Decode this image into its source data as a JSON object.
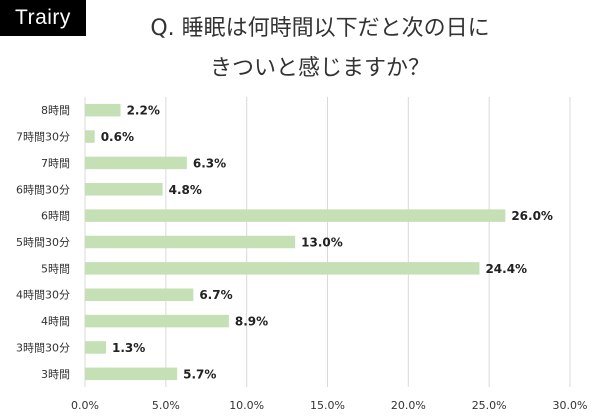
{
  "brand": {
    "logo_text": "Trairy"
  },
  "header": {
    "title_line1": "Q. 睡眠は何時間以下だと次の日に",
    "title_line2": "きついと感じますか？"
  },
  "chart_data": {
    "type": "bar",
    "orientation": "horizontal",
    "title": "Q. 睡眠は何時間以下だと次の日にきついと感じますか？",
    "categories": [
      "8時間",
      "7時間30分",
      "7時間",
      "6時間30分",
      "6時間",
      "5時間30分",
      "5時間",
      "4時間30分",
      "4時間",
      "3時間30分",
      "3時間"
    ],
    "values": [
      2.2,
      0.6,
      6.3,
      4.8,
      26.0,
      13.0,
      24.4,
      6.7,
      8.9,
      1.3,
      5.7
    ],
    "value_labels": [
      "2.2%",
      "0.6%",
      "6.3%",
      "4.8%",
      "26.0%",
      "13.0%",
      "24.4%",
      "6.7%",
      "8.9%",
      "1.3%",
      "5.7%"
    ],
    "x_ticks": [
      "0.0%",
      "5.0%",
      "10.0%",
      "15.0%",
      "20.0%",
      "25.0%",
      "30.0%"
    ],
    "xlim": [
      0,
      30
    ],
    "xlabel": "",
    "ylabel": "",
    "grid": "vertical",
    "legend": "none",
    "bar_color": "#c5e0b4"
  }
}
